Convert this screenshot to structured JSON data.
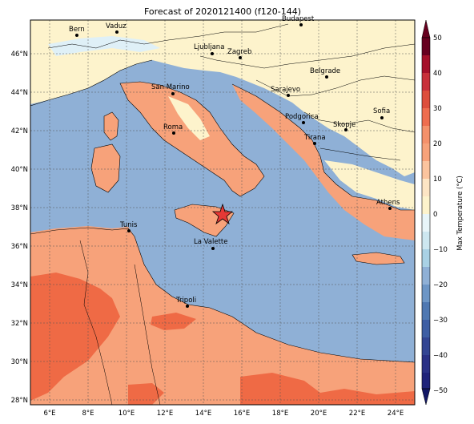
{
  "title": "Forecast of 2020121400 (f120-144)",
  "colorbar": {
    "label": "Max Temperature (°C)",
    "ticks": [
      "50",
      "40",
      "30",
      "20",
      "10",
      "0",
      "−10",
      "−20",
      "−30",
      "−40",
      "−50"
    ],
    "colors": [
      "#67001f",
      "#b2182b",
      "#d6604d",
      "#f4a582",
      "#fddbc7",
      "#fff7d6",
      "#e0f3f8",
      "#92c5de",
      "#6a9fcf",
      "#4a76b4",
      "#2c3e8c",
      "#1a237e"
    ]
  },
  "lat_labels": [
    "46°N",
    "44°N",
    "42°N",
    "40°N",
    "38°N",
    "36°N",
    "34°N",
    "32°N",
    "30°N",
    "28°N"
  ],
  "lon_labels": [
    "6°E",
    "8°E",
    "10°E",
    "12°E",
    "14°E",
    "16°E",
    "18°E",
    "20°E",
    "22°E",
    "24°E"
  ],
  "cities": [
    {
      "name": "Bern"
    },
    {
      "name": "Vaduz"
    },
    {
      "name": "Budapest"
    },
    {
      "name": "Ljubljana"
    },
    {
      "name": "Zagreb"
    },
    {
      "name": "Belgrade"
    },
    {
      "name": "San Marino"
    },
    {
      "name": "Sarajevo"
    },
    {
      "name": "Sofia"
    },
    {
      "name": "Roma"
    },
    {
      "name": "Podgorica"
    },
    {
      "name": "Skopje"
    },
    {
      "name": "Tirana"
    },
    {
      "name": "Athens"
    },
    {
      "name": "Tunis"
    },
    {
      "name": "La Valette"
    },
    {
      "name": "Tripoli"
    }
  ],
  "colors": {
    "sea": "#8fb0d6",
    "land_warm": "#f7a27a",
    "land_hot": "#ef6a45",
    "land_mild": "#fdf3cc",
    "cold": "#dff0f7"
  }
}
